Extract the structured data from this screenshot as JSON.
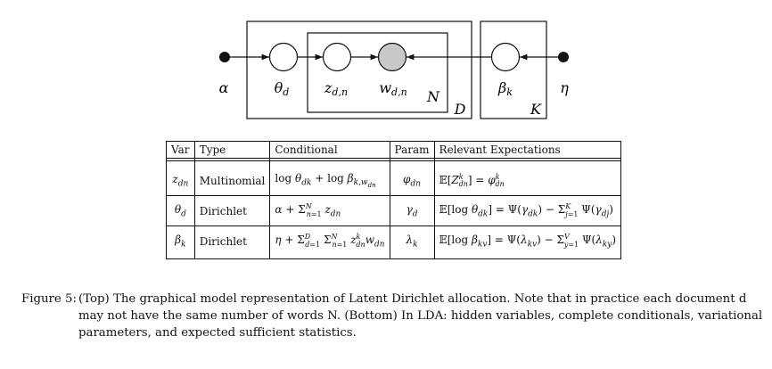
{
  "diagram": {
    "nodes": [
      {
        "id": "alpha",
        "label": "α",
        "kind": "hyperparameter"
      },
      {
        "id": "theta",
        "label": "θ_d",
        "kind": "latent"
      },
      {
        "id": "z",
        "label": "z_{d,n}",
        "kind": "latent"
      },
      {
        "id": "w",
        "label": "w_{d,n}",
        "kind": "observed"
      },
      {
        "id": "beta",
        "label": "β_k",
        "kind": "latent"
      },
      {
        "id": "eta",
        "label": "η",
        "kind": "hyperparameter"
      }
    ],
    "plates": [
      {
        "id": "N",
        "label": "N"
      },
      {
        "id": "D",
        "label": "D"
      },
      {
        "id": "K",
        "label": "K"
      }
    ],
    "edges": [
      [
        "alpha",
        "theta"
      ],
      [
        "theta",
        "z"
      ],
      [
        "z",
        "w"
      ],
      [
        "beta",
        "w"
      ],
      [
        "eta",
        "beta"
      ]
    ]
  },
  "table": {
    "headers": [
      "Var",
      "Type",
      "Conditional",
      "Param",
      "Relevant Expectations"
    ],
    "rows": [
      {
        "var": "z_dn",
        "type": "Multinomial",
        "conditional": "log θ_dk + log β_{k,w_dn}",
        "param": "φ_dn",
        "expectation": "E[Z^k_dn] = φ^k_dn"
      },
      {
        "var": "θ_d",
        "type": "Dirichlet",
        "conditional": "α + Σ_{n=1}^N z_dn",
        "param": "γ_d",
        "expectation": "E[log θ_dk] = Ψ(γ_dk) − Σ_{j=1}^K Ψ(γ_dj)"
      },
      {
        "var": "β_k",
        "type": "Dirichlet",
        "conditional": "η + Σ_{d=1}^D Σ_{n=1}^N z^k_dn w_dn",
        "param": "λ_k",
        "expectation": "E[log β_kv] = Ψ(λ_kv) − Σ_{y=1}^V Ψ(λ_ky)"
      }
    ]
  },
  "caption": {
    "label": "Figure 5:",
    "text": "(Top) The graphical model representation of Latent Dirichlet allocation. Note that in practice each document d may not have the same number of words N. (Bottom) In LDA: hidden variables, complete conditionals, variational parameters, and expected sufficient statistics."
  }
}
